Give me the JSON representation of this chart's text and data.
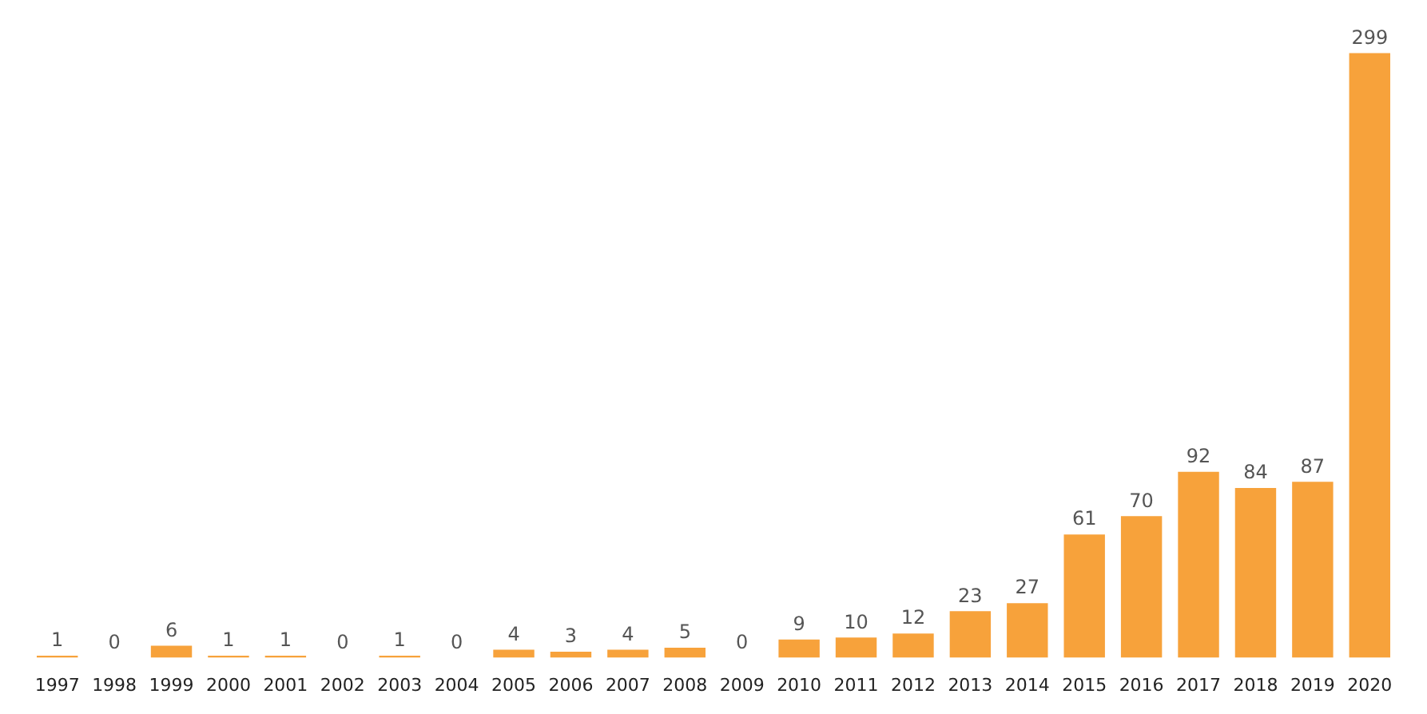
{
  "chart_data": {
    "type": "bar",
    "categories": [
      "1997",
      "1998",
      "1999",
      "2000",
      "2001",
      "2002",
      "2003",
      "2004",
      "2005",
      "2006",
      "2007",
      "2008",
      "2009",
      "2010",
      "2011",
      "2012",
      "2013",
      "2014",
      "2015",
      "2016",
      "2017",
      "2018",
      "2019",
      "2020"
    ],
    "values": [
      1,
      0,
      6,
      1,
      1,
      0,
      1,
      0,
      4,
      3,
      4,
      5,
      0,
      9,
      10,
      12,
      23,
      27,
      61,
      70,
      92,
      84,
      87,
      299
    ],
    "color": "#f7a23b",
    "data_labels": true,
    "grid": false,
    "legend": false
  }
}
